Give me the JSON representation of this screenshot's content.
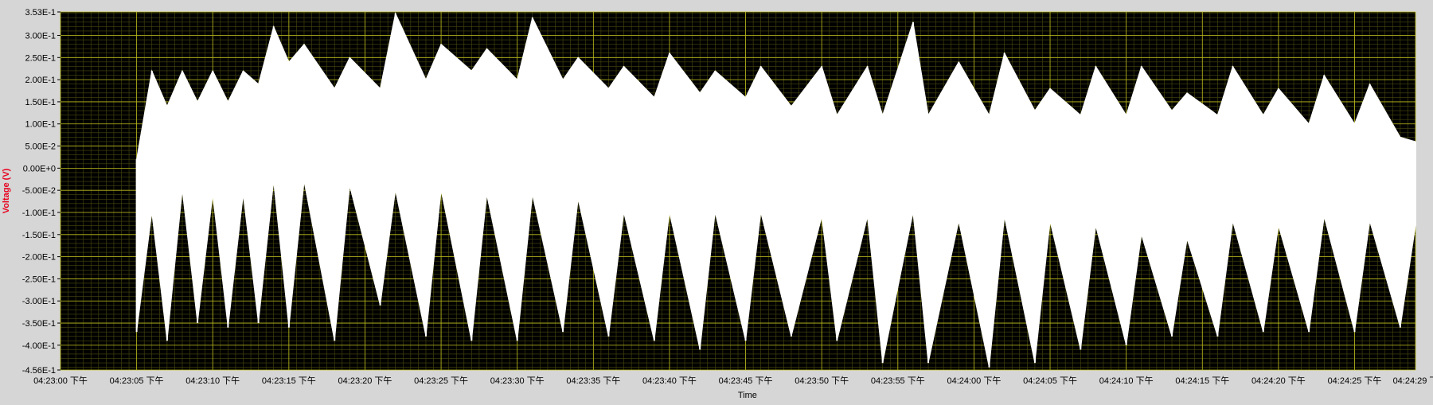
{
  "chart_data": {
    "type": "line",
    "title": "",
    "xlabel": "Time",
    "ylabel": "Voltage (V)",
    "xlim": [
      "04:23:00 下午",
      "04:24:29 下午"
    ],
    "ylim": [
      -0.456,
      0.353
    ],
    "y_ticks": [
      "3.53E-1",
      "3.00E-1",
      "2.50E-1",
      "2.00E-1",
      "1.50E-1",
      "1.00E-1",
      "5.00E-2",
      "0.00E+0",
      "-5.00E-2",
      "-1.00E-1",
      "-1.50E-1",
      "-2.00E-1",
      "-2.50E-1",
      "-3.00E-1",
      "-3.50E-1",
      "-4.00E-1",
      "-4.56E-1"
    ],
    "x_ticks": [
      "04:23:00 下午",
      "04:23:05 下午",
      "04:23:10 下午",
      "04:23:15 下午",
      "04:23:20 下午",
      "04:23:25 下午",
      "04:23:30 下午",
      "04:23:35 下午",
      "04:23:40 下午",
      "04:23:45 下午",
      "04:23:50 下午",
      "04:23:55 下午",
      "04:24:00 下午",
      "04:24:05 下午",
      "04:24:10 下午",
      "04:24:15 下午",
      "04:24:20 下午",
      "04:24:25 下午",
      "04:24:29 下"
    ],
    "grid": true,
    "legend": "none",
    "series": [
      {
        "x": [
          "04:23:05",
          "04:23:06",
          "04:23:07",
          "04:23:08",
          "04:23:09",
          "04:23:10",
          "04:23:11",
          "04:23:12",
          "04:23:13",
          "04:23:14",
          "04:23:15",
          "04:23:16",
          "04:23:18",
          "04:23:19",
          "04:23:21",
          "04:23:22",
          "04:23:24",
          "04:23:25",
          "04:23:27",
          "04:23:28",
          "04:23:30",
          "04:23:31",
          "04:23:33",
          "04:23:34",
          "04:23:36",
          "04:23:37",
          "04:23:39",
          "04:23:40",
          "04:23:42",
          "04:23:43",
          "04:23:45",
          "04:23:46",
          "04:23:48",
          "04:23:50",
          "04:23:51",
          "04:23:53",
          "04:23:54",
          "04:23:56",
          "04:23:57",
          "04:23:59",
          "04:24:01",
          "04:24:02",
          "04:24:04",
          "04:24:05",
          "04:24:07",
          "04:24:08",
          "04:24:10",
          "04:24:11",
          "04:24:13",
          "04:24:14",
          "04:24:16",
          "04:24:17",
          "04:24:19",
          "04:24:20",
          "04:24:22",
          "04:24:23",
          "04:24:25",
          "04:24:26",
          "04:24:28",
          "04:24:29"
        ],
        "y_max": [
          0.02,
          0.22,
          0.14,
          0.22,
          0.15,
          0.22,
          0.15,
          0.22,
          0.19,
          0.32,
          0.24,
          0.28,
          0.18,
          0.25,
          0.18,
          0.35,
          0.2,
          0.28,
          0.22,
          0.27,
          0.2,
          0.34,
          0.2,
          0.25,
          0.18,
          0.23,
          0.16,
          0.26,
          0.17,
          0.22,
          0.16,
          0.23,
          0.14,
          0.23,
          0.12,
          0.23,
          0.12,
          0.33,
          0.12,
          0.24,
          0.12,
          0.26,
          0.13,
          0.18,
          0.12,
          0.23,
          0.12,
          0.23,
          0.13,
          0.17,
          0.12,
          0.23,
          0.12,
          0.18,
          0.1,
          0.21,
          0.1,
          0.19,
          0.07,
          0.06
        ],
        "y_min": [
          -0.37,
          -0.1,
          -0.39,
          -0.05,
          -0.35,
          -0.06,
          -0.36,
          -0.06,
          -0.35,
          -0.03,
          -0.36,
          -0.03,
          -0.39,
          -0.04,
          -0.31,
          -0.05,
          -0.38,
          -0.05,
          -0.39,
          -0.06,
          -0.39,
          -0.06,
          -0.37,
          -0.07,
          -0.38,
          -0.1,
          -0.39,
          -0.1,
          -0.41,
          -0.1,
          -0.39,
          -0.1,
          -0.38,
          -0.11,
          -0.39,
          -0.11,
          -0.44,
          -0.1,
          -0.44,
          -0.12,
          -0.45,
          -0.11,
          -0.44,
          -0.12,
          -0.41,
          -0.13,
          -0.4,
          -0.15,
          -0.38,
          -0.16,
          -0.38,
          -0.12,
          -0.37,
          -0.13,
          -0.37,
          -0.11,
          -0.37,
          -0.12,
          -0.36,
          -0.13
        ]
      }
    ]
  },
  "colors": {
    "plot_background": "#000000",
    "major_grid": "#bcbc1c",
    "minor_grid": "#4a4a10",
    "trace": "#ffffff",
    "ylabel_color": "#e8001e",
    "frame_background": "#d6d6d6"
  }
}
